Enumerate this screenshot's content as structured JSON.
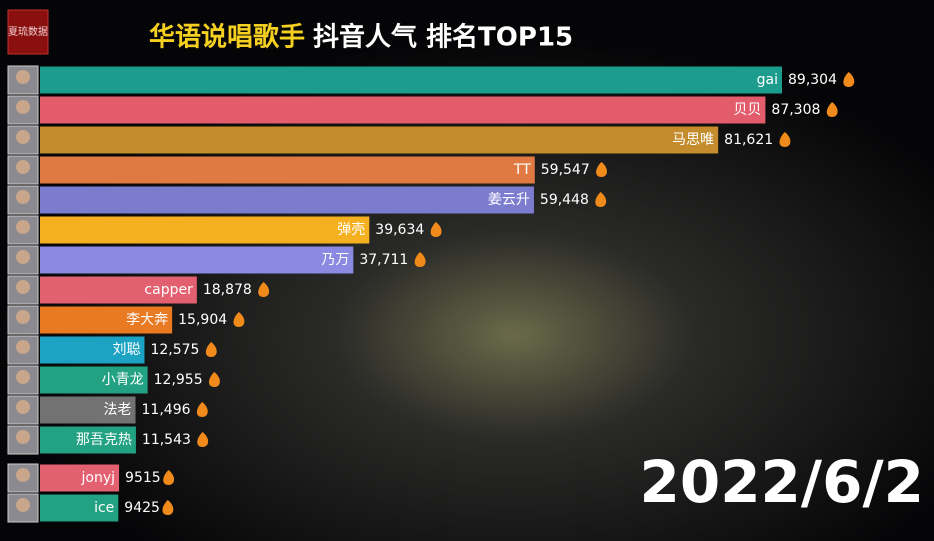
{
  "logo": "夏琉数据",
  "chart_data": {
    "type": "bar",
    "orientation": "horizontal",
    "title": "华语说唱歌手",
    "subtitle": "抖音人气 排名TOP15",
    "date": "2022/6/2",
    "categories": [
      "gai",
      "贝贝",
      "马思唯",
      "TT",
      "姜云升",
      "弹壳",
      "乃万",
      "capper",
      "李大奔",
      "刘聪",
      "小青龙",
      "法老",
      "那吾克热",
      "jonyj",
      "ice"
    ],
    "values": [
      89304,
      87308,
      81621,
      59547,
      59448,
      39634,
      37711,
      18878,
      15904,
      12575,
      12955,
      11496,
      11543,
      9515,
      9425
    ],
    "value_labels": [
      "89,304",
      "87,308",
      "81,621",
      "59,547",
      "59,448",
      "39,634",
      "37,711",
      "18,878",
      "15,904",
      "12,575",
      "12,955",
      "11,496",
      "11,543",
      "9515",
      "9425"
    ],
    "colors": [
      "#1c9c8c",
      "#e25c6c",
      "#c48c2c",
      "#e07a42",
      "#7c7cce",
      "#f5b020",
      "#8a8ae2",
      "#e26070",
      "#ea7a22",
      "#1ca2c2",
      "#22a282",
      "#727272",
      "#22a282",
      "#e26070",
      "#22a282"
    ]
  }
}
